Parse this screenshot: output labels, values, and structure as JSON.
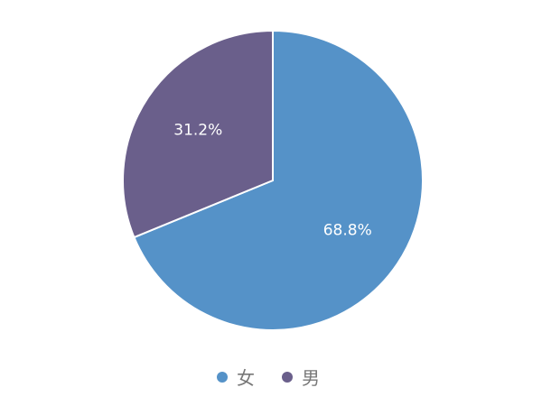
{
  "chart_data": {
    "type": "pie",
    "title": "",
    "start_angle_deg": 0,
    "direction": "clockwise",
    "slices": [
      {
        "name": "女",
        "value": 68.8,
        "label": "68.8%",
        "color": "#5592c8"
      },
      {
        "name": "男",
        "value": 31.2,
        "label": "31.2%",
        "color": "#6a5f8b"
      }
    ],
    "legend": {
      "placement": "bottom"
    }
  }
}
